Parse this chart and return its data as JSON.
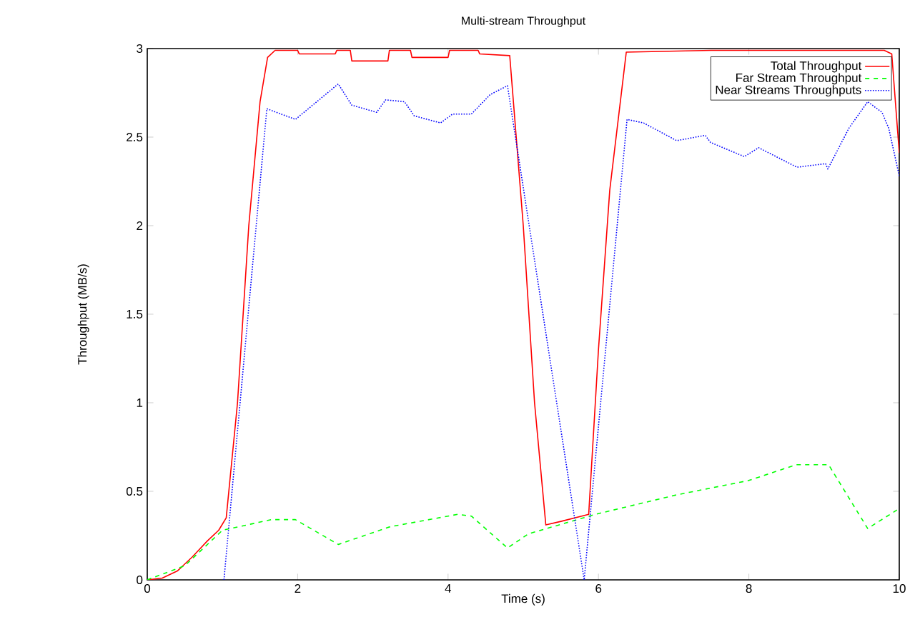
{
  "chart_data": {
    "type": "line",
    "title": "Multi-stream Throughput",
    "xlabel": "Time (s)",
    "ylabel": "Throughput (MB/s)",
    "xlim": [
      0,
      10
    ],
    "ylim": [
      0,
      3
    ],
    "xticks": [
      0,
      2,
      4,
      6,
      8,
      10
    ],
    "yticks": [
      0,
      0.5,
      1,
      1.5,
      2,
      2.5,
      3
    ],
    "grid": false,
    "legend": "top right",
    "series": [
      {
        "name": "Total Throughput",
        "color": "#ff0000",
        "line_style": "solid",
        "x": [
          0,
          0.2,
          0.4,
          0.6,
          0.8,
          0.95,
          1.05,
          1.2,
          1.35,
          1.5,
          1.6,
          1.7,
          2.0,
          2.02,
          2.5,
          2.52,
          2.7,
          2.72,
          3.2,
          3.22,
          3.5,
          3.52,
          4.0,
          4.02,
          4.4,
          4.42,
          4.82,
          5.0,
          5.15,
          5.3,
          5.5,
          5.87,
          6.0,
          6.15,
          6.37,
          7.5,
          9.8,
          9.9,
          10
        ],
        "values": [
          0,
          0.01,
          0.05,
          0.13,
          0.22,
          0.28,
          0.35,
          1.0,
          2.0,
          2.7,
          2.95,
          2.99,
          2.99,
          2.97,
          2.97,
          2.99,
          2.99,
          2.93,
          2.93,
          2.99,
          2.99,
          2.95,
          2.95,
          2.99,
          2.99,
          2.97,
          2.96,
          2.0,
          1.0,
          0.31,
          0.33,
          0.37,
          1.3,
          2.2,
          2.98,
          2.99,
          2.99,
          2.97,
          2.41
        ]
      },
      {
        "name": "Far Stream Throughput",
        "color": "#00ff00",
        "line_style": "dashed",
        "x": [
          0,
          0.5,
          1,
          1.65,
          1.97,
          2.54,
          3.23,
          4.13,
          4.31,
          4.79,
          5.07,
          5.96,
          7.04,
          7.99,
          8.63,
          9.06,
          9.58,
          9.99
        ],
        "values": [
          0,
          0.08,
          0.28,
          0.34,
          0.34,
          0.2,
          0.3,
          0.37,
          0.36,
          0.18,
          0.26,
          0.37,
          0.48,
          0.56,
          0.65,
          0.65,
          0.29,
          0.4
        ]
      },
      {
        "name": "Near Streams Throughputs",
        "color": "#0000ff",
        "line_style": "dotted",
        "x": [
          1.02,
          1.59,
          1.97,
          2.54,
          2.72,
          3.05,
          3.17,
          3.42,
          3.55,
          3.9,
          4.06,
          4.31,
          4.56,
          4.79,
          5.81,
          6.38,
          6.6,
          7.04,
          7.42,
          7.49,
          7.94,
          8.13,
          8.64,
          9.02,
          9.05,
          9.33,
          9.58,
          9.77,
          9.86,
          10
        ],
        "values": [
          0,
          2.66,
          2.6,
          2.8,
          2.68,
          2.64,
          2.71,
          2.7,
          2.62,
          2.58,
          2.63,
          2.63,
          2.74,
          2.79,
          0,
          2.6,
          2.58,
          2.48,
          2.51,
          2.47,
          2.39,
          2.44,
          2.33,
          2.35,
          2.32,
          2.55,
          2.7,
          2.64,
          2.55,
          2.28
        ]
      }
    ]
  }
}
